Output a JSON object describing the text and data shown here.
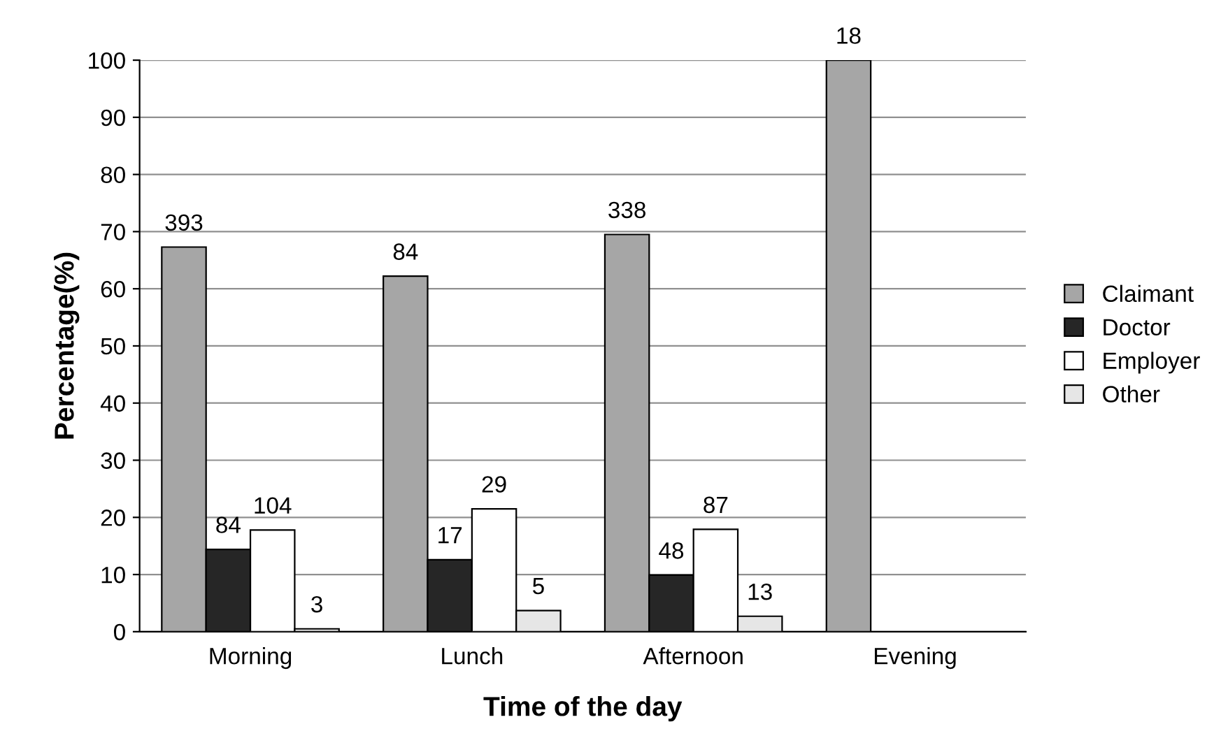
{
  "chart_data": {
    "type": "bar",
    "xlabel": "Time of the day",
    "ylabel": "Percentage(%)",
    "categories": [
      "Morning",
      "Lunch",
      "Afternoon",
      "Evening"
    ],
    "series": [
      {
        "name": "Claimant",
        "color": "#a6a6a6",
        "values": [
          67.3,
          62.2,
          69.5,
          100
        ]
      },
      {
        "name": "Doctor",
        "color": "#262626",
        "values": [
          14.4,
          12.6,
          9.9,
          null
        ]
      },
      {
        "name": "Employer",
        "color": "#ffffff",
        "values": [
          17.8,
          21.5,
          17.9,
          null
        ]
      },
      {
        "name": "Other",
        "color": "#e6e6e6",
        "values": [
          0.5,
          3.7,
          2.7,
          null
        ]
      }
    ],
    "annotations": [
      "393",
      "84",
      "338",
      "18",
      "84",
      "17",
      "48",
      "104",
      "29",
      "87",
      "3",
      "5",
      "13"
    ],
    "ylim": [
      0,
      100
    ],
    "yticks": [
      0,
      10,
      20,
      30,
      40,
      50,
      60,
      70,
      80,
      90,
      100
    ],
    "grid": "y",
    "legend": "right"
  }
}
